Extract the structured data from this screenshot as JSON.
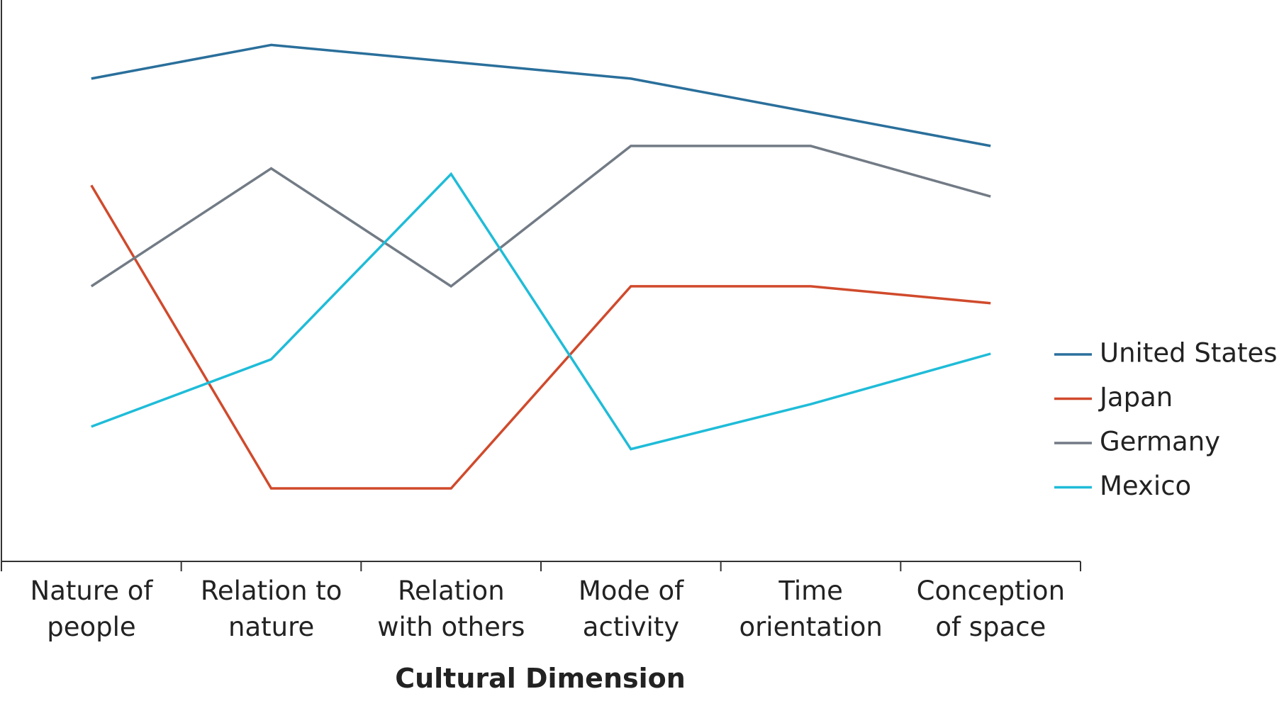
{
  "chart_data": {
    "type": "line",
    "x_label": "Cultural Dimension",
    "categories": [
      "Nature of\npeople",
      "Relation to\nnature",
      "Relation\nwith others",
      "Mode of\nactivity",
      "Time\norientation",
      "Conception\nof space"
    ],
    "series": [
      {
        "name": "United States",
        "color": "#2a6f9b",
        "values": [
          8.6,
          9.2,
          8.9,
          8.6,
          8.0,
          7.4
        ]
      },
      {
        "name": "Japan",
        "color": "#d04a2c",
        "values": [
          6.7,
          1.3,
          1.3,
          4.9,
          4.9,
          4.6
        ]
      },
      {
        "name": "Germany",
        "color": "#727b85",
        "values": [
          4.9,
          7.0,
          4.9,
          7.4,
          7.4,
          6.5
        ]
      },
      {
        "name": "Mexico",
        "color": "#1fbcd8",
        "values": [
          2.4,
          3.6,
          6.9,
          2.0,
          2.8,
          3.7
        ]
      }
    ],
    "ylim": [
      0,
      10
    ],
    "legend": "right"
  }
}
